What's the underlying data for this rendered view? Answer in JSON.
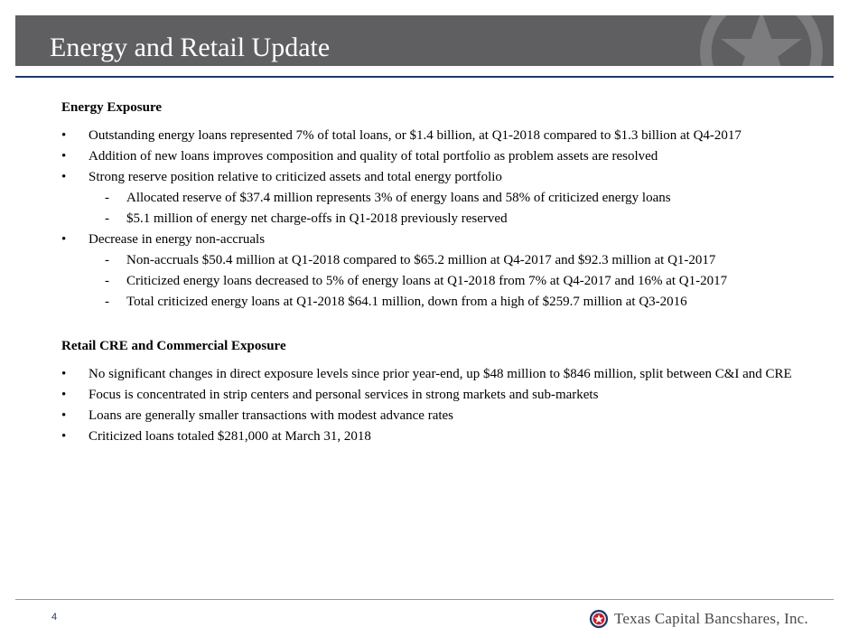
{
  "slide": {
    "title": "Energy and Retail Update",
    "page_number": "4"
  },
  "logo": {
    "text": "Texas Capital Bancshares, Inc.",
    "icon": "star-seal-icon",
    "colors": {
      "navy": "#1f3864",
      "red": "#c0202f"
    }
  },
  "sections": [
    {
      "heading": "Energy Exposure",
      "items": [
        {
          "text": "Outstanding energy loans represented 7% of total loans, or $1.4 billion, at Q1-2018 compared to $1.3 billion at Q4-2017",
          "level": 1
        },
        {
          "text": "Addition of new loans improves composition and quality of total portfolio as problem assets are resolved",
          "level": 1
        },
        {
          "text": "Strong reserve position relative to criticized assets and total energy portfolio",
          "level": 1
        },
        {
          "text": "Allocated reserve of $37.4 million represents 3% of energy loans and 58% of criticized energy loans",
          "level": 2
        },
        {
          "text": "$5.1 million of energy net charge-offs in Q1-2018 previously reserved",
          "level": 2
        },
        {
          "text": "Decrease in energy non-accruals",
          "level": 1
        },
        {
          "text": "Non-accruals $50.4 million at Q1-2018 compared to $65.2 million at Q4-2017 and $92.3 million at Q1-2017",
          "level": 2
        },
        {
          "text": "Criticized energy loans decreased to 5% of energy loans at Q1-2018 from 7% at Q4-2017 and 16% at Q1-2017",
          "level": 2
        },
        {
          "text": "Total criticized energy loans at Q1-2018 $64.1 million, down from a high of $259.7 million at Q3-2016",
          "level": 2
        }
      ]
    },
    {
      "heading": "Retail CRE and Commercial Exposure",
      "items": [
        {
          "text": "No significant changes in direct exposure levels since prior year-end, up $48 million to $846 million, split between C&I and CRE",
          "level": 1
        },
        {
          "text": "Focus is concentrated in strip centers and personal services in strong markets and sub-markets",
          "level": 1
        },
        {
          "text": "Loans are generally smaller transactions with modest advance rates",
          "level": 1
        },
        {
          "text": "Criticized loans totaled $281,000 at March 31, 2018",
          "level": 1
        }
      ]
    }
  ]
}
